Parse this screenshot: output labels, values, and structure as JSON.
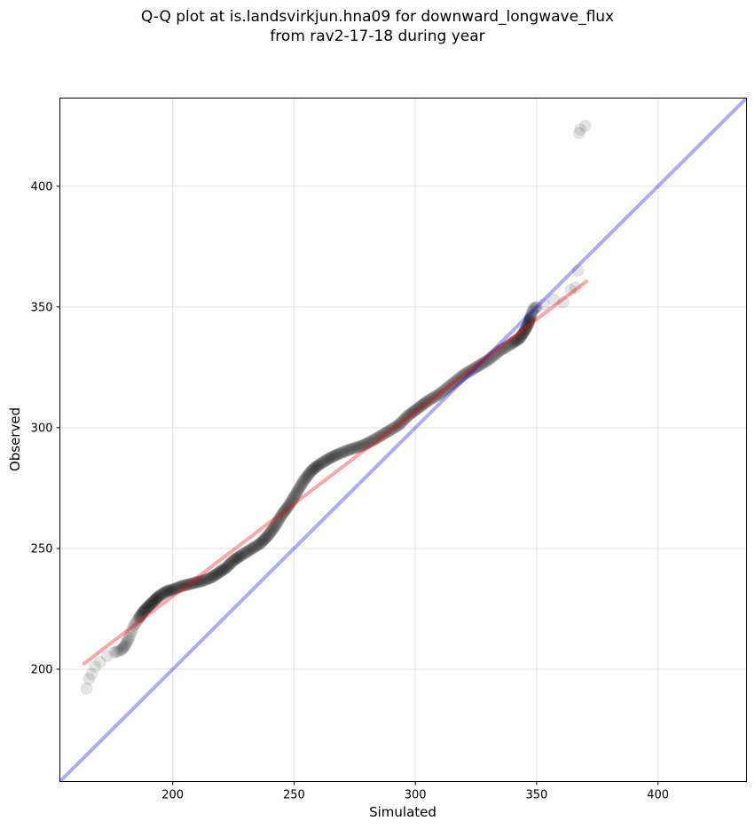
{
  "chart_data": {
    "type": "scatter",
    "title_line1": "Q-Q plot at is.landsvirkjun.hna09 for downward_longwave_flux",
    "title_line2": "from rav2-17-18 during year",
    "xlabel": "Simulated",
    "ylabel": "Observed",
    "xlim": [
      153.5,
      436.5
    ],
    "ylim": [
      153.5,
      436.5
    ],
    "xticks": [
      "200",
      "250",
      "300",
      "350",
      "400"
    ],
    "yticks": [
      "200",
      "250",
      "300",
      "350",
      "400"
    ],
    "grid": true,
    "quantiles": [
      [
        164.5,
        192
      ],
      [
        165.5,
        196
      ],
      [
        166.5,
        198
      ],
      [
        168,
        201
      ],
      [
        170,
        203
      ],
      [
        173,
        205.5
      ],
      [
        176,
        207
      ],
      [
        179,
        208
      ],
      [
        180.5,
        210
      ],
      [
        182,
        213
      ],
      [
        184,
        218
      ],
      [
        186,
        221
      ],
      [
        188,
        224
      ],
      [
        190,
        226
      ],
      [
        192,
        228
      ],
      [
        194,
        230
      ],
      [
        197,
        232
      ],
      [
        200,
        233
      ],
      [
        204,
        234.5
      ],
      [
        208,
        235.5
      ],
      [
        212,
        236.5
      ],
      [
        216,
        238
      ],
      [
        219,
        240
      ],
      [
        222,
        242
      ],
      [
        225,
        245
      ],
      [
        228,
        247
      ],
      [
        232,
        249.5
      ],
      [
        236,
        252
      ],
      [
        239,
        255
      ],
      [
        242,
        259
      ],
      [
        245,
        264
      ],
      [
        248,
        268
      ],
      [
        251,
        273
      ],
      [
        254,
        278
      ],
      [
        257,
        282
      ],
      [
        260,
        284.5
      ],
      [
        264,
        287
      ],
      [
        268,
        289
      ],
      [
        273,
        291
      ],
      [
        278,
        292.5
      ],
      [
        283,
        295
      ],
      [
        288,
        298
      ],
      [
        293,
        301
      ],
      [
        297,
        305
      ],
      [
        301,
        308
      ],
      [
        305,
        311
      ],
      [
        310,
        314
      ],
      [
        315,
        318
      ],
      [
        320,
        322
      ],
      [
        325,
        325
      ],
      [
        330,
        328
      ],
      [
        335,
        332
      ],
      [
        340,
        335
      ],
      [
        343,
        337
      ],
      [
        345,
        340
      ],
      [
        346.5,
        343
      ],
      [
        347.5,
        346
      ],
      [
        348.5,
        349
      ],
      [
        350,
        350
      ],
      [
        353,
        351
      ],
      [
        357,
        353
      ],
      [
        361,
        352
      ],
      [
        364,
        357
      ],
      [
        366,
        358
      ],
      [
        367,
        365
      ],
      [
        367.5,
        422
      ],
      [
        368,
        423.5
      ],
      [
        370,
        425
      ]
    ],
    "fit_line": {
      "x": [
        163,
        371
      ],
      "y": [
        202,
        361
      ],
      "color": "#ff0000",
      "alpha": 0.35
    },
    "identity_line": {
      "x": [
        153.5,
        436.5
      ],
      "y": [
        153.5,
        436.5
      ],
      "color": "#0000ff",
      "alpha": 0.33
    },
    "marker_color": "#000000"
  }
}
